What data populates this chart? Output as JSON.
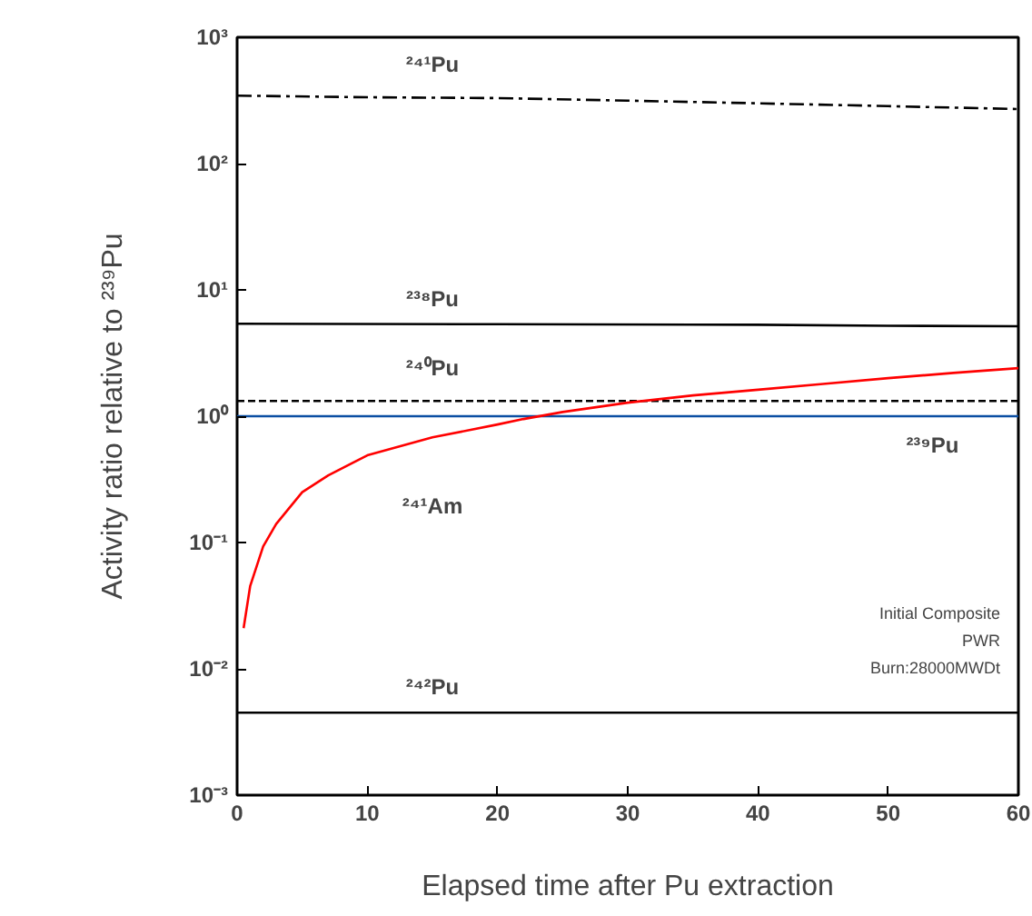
{
  "chart_data": {
    "type": "line",
    "xlabel": "Elapsed time after Pu extraction",
    "ylabel": "Activity ratio relative to ²³⁹Pu",
    "log": "y",
    "grid": false,
    "xlim": [
      0,
      60
    ],
    "xticks": [
      0,
      10,
      20,
      30,
      40,
      50,
      60
    ],
    "ylim": [
      0.001,
      1000
    ],
    "yticks": [
      {
        "value": 0.001,
        "label": "10⁻³"
      },
      {
        "value": 0.01,
        "label": "10⁻²"
      },
      {
        "value": 0.1,
        "label": "10⁻¹"
      },
      {
        "value": 1,
        "label": "10⁰"
      },
      {
        "value": 10,
        "label": "10¹"
      },
      {
        "value": 100,
        "label": "10²"
      },
      {
        "value": 1000,
        "label": "10³"
      }
    ],
    "series": [
      {
        "name": "²⁴¹Pu",
        "color": "#000000",
        "line_style": "dashdot",
        "x": [
          0,
          10,
          20,
          30,
          40,
          50,
          60
        ],
        "values": [
          345,
          335,
          330,
          315,
          300,
          285,
          270
        ]
      },
      {
        "name": "²³⁸Pu",
        "color": "#000000",
        "line_style": "solid",
        "x": [
          0,
          20,
          40,
          50,
          60
        ],
        "values": [
          5.4,
          5.35,
          5.3,
          5.2,
          5.15
        ]
      },
      {
        "name": "²⁴⁰Pu",
        "color": "#000000",
        "line_style": "dashed",
        "x": [
          0,
          60
        ],
        "values": [
          1.32,
          1.32
        ]
      },
      {
        "name": "²³⁹Pu",
        "color": "#0b4ea2",
        "line_style": "solid",
        "x": [
          0,
          60
        ],
        "values": [
          1.0,
          1.0
        ]
      },
      {
        "name": "²⁴¹Am",
        "color": "#ff0000",
        "line_style": "solid",
        "x": [
          0.5,
          1,
          2,
          3,
          5,
          7,
          10,
          15,
          20,
          22,
          25,
          30,
          35,
          40,
          45,
          50,
          55,
          60
        ],
        "values": [
          0.021,
          0.045,
          0.093,
          0.14,
          0.25,
          0.34,
          0.49,
          0.68,
          0.86,
          0.95,
          1.08,
          1.28,
          1.46,
          1.62,
          1.8,
          2.0,
          2.2,
          2.4
        ]
      },
      {
        "name": "²⁴²Pu",
        "color": "#000000",
        "line_style": "solid",
        "x": [
          0,
          60
        ],
        "values": [
          0.0045,
          0.0045
        ]
      }
    ],
    "annotations": [
      "Initial Composite",
      "PWR",
      "Burn:28000MWDt"
    ]
  }
}
